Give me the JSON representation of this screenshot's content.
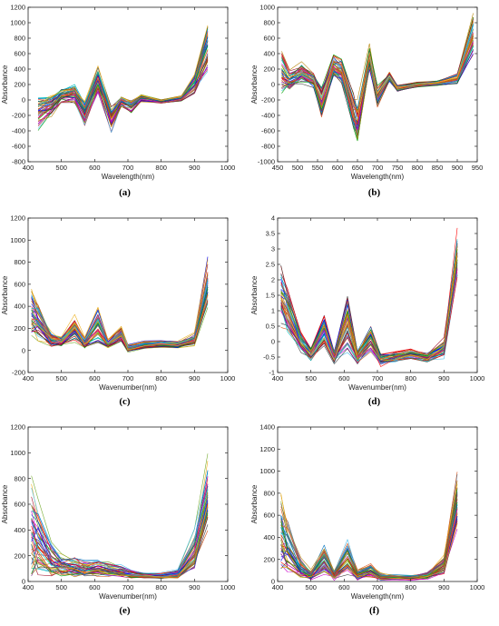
{
  "chart_data": [
    {
      "id": "a",
      "type": "line",
      "panel_label": "(a)",
      "xlabel": "Wavelength(nm)",
      "ylabel": "Absorbance",
      "xlim": [
        400,
        1000
      ],
      "ylim": [
        -800,
        1200
      ],
      "xticks": [
        400,
        500,
        600,
        700,
        800,
        900,
        1000
      ],
      "yticks": [
        -800,
        -600,
        -400,
        -200,
        0,
        200,
        400,
        600,
        800,
        1000,
        1200
      ],
      "x": [
        430,
        470,
        500,
        540,
        570,
        610,
        650,
        680,
        710,
        740,
        800,
        860,
        900,
        940
      ],
      "mean": [
        -150,
        -80,
        50,
        80,
        -180,
        250,
        -250,
        -30,
        -80,
        20,
        -20,
        20,
        200,
        650
      ],
      "spread": [
        200,
        120,
        80,
        100,
        130,
        150,
        150,
        60,
        70,
        40,
        20,
        30,
        100,
        300
      ],
      "n_series": 45,
      "grid": false
    },
    {
      "id": "b",
      "type": "line",
      "panel_label": "(b)",
      "xlabel": "Wavelength(nm)",
      "ylabel": "Absorbance",
      "xlim": [
        450,
        950
      ],
      "ylim": [
        -1000,
        1000
      ],
      "xticks": [
        450,
        500,
        550,
        600,
        650,
        700,
        750,
        800,
        850,
        900,
        950
      ],
      "yticks": [
        -1000,
        -800,
        -600,
        -400,
        -200,
        0,
        200,
        400,
        600,
        800,
        1000
      ],
      "x": [
        460,
        480,
        510,
        540,
        560,
        590,
        610,
        640,
        650,
        680,
        700,
        730,
        750,
        800,
        850,
        900,
        940
      ],
      "mean": [
        150,
        60,
        150,
        60,
        -200,
        250,
        200,
        -350,
        -500,
        350,
        -150,
        100,
        -50,
        0,
        20,
        80,
        650
      ],
      "spread": [
        250,
        120,
        120,
        80,
        200,
        120,
        150,
        200,
        250,
        150,
        120,
        60,
        40,
        30,
        30,
        60,
        250
      ],
      "n_series": 45,
      "grid": false
    },
    {
      "id": "c",
      "type": "line",
      "panel_label": "(c)",
      "xlabel": "Wavenumber(nm)",
      "ylabel": "Absorbance",
      "xlim": [
        400,
        1000
      ],
      "ylim": [
        -200,
        1200
      ],
      "xticks": [
        400,
        500,
        600,
        700,
        800,
        900,
        1000
      ],
      "yticks": [
        -200,
        0,
        200,
        400,
        600,
        800,
        1000,
        1200
      ],
      "x": [
        410,
        430,
        470,
        500,
        540,
        570,
        610,
        640,
        680,
        700,
        750,
        800,
        850,
        900,
        940
      ],
      "mean": [
        350,
        280,
        100,
        80,
        200,
        70,
        230,
        60,
        150,
        20,
        50,
        60,
        50,
        100,
        600
      ],
      "spread": [
        200,
        150,
        60,
        40,
        100,
        40,
        150,
        40,
        70,
        30,
        30,
        30,
        30,
        50,
        200
      ],
      "n_series": 45,
      "grid": false
    },
    {
      "id": "d",
      "type": "line",
      "panel_label": "(d)",
      "xlabel": "Wavenumber(nm)",
      "ylabel": "Absorbance",
      "xlim": [
        400,
        1000
      ],
      "ylim": [
        -1,
        4
      ],
      "xticks": [
        400,
        500,
        600,
        700,
        800,
        900,
        1000
      ],
      "yticks": [
        -1,
        -0.5,
        0,
        0.5,
        1,
        1.5,
        2,
        2.5,
        3,
        3.5,
        4
      ],
      "x": [
        410,
        430,
        470,
        500,
        540,
        570,
        610,
        640,
        680,
        710,
        750,
        800,
        850,
        900,
        940
      ],
      "mean": [
        1.5,
        1.0,
        0.0,
        -0.4,
        0.4,
        -0.5,
        0.6,
        -0.5,
        0.1,
        -0.6,
        -0.5,
        -0.4,
        -0.5,
        -0.2,
        2.8
      ],
      "spread": [
        0.9,
        0.6,
        0.3,
        0.2,
        0.5,
        0.2,
        0.8,
        0.2,
        0.4,
        0.2,
        0.15,
        0.15,
        0.15,
        0.3,
        0.8
      ],
      "n_series": 45,
      "grid": false
    },
    {
      "id": "e",
      "type": "line",
      "panel_label": "(e)",
      "xlabel": "Wavenumber(nm)",
      "ylabel": "Absorbance",
      "xlim": [
        400,
        1000
      ],
      "ylim": [
        0,
        1200
      ],
      "xticks": [
        400,
        500,
        600,
        700,
        800,
        900,
        1000
      ],
      "yticks": [
        0,
        200,
        400,
        600,
        800,
        1000,
        1200
      ],
      "x": [
        410,
        430,
        470,
        500,
        540,
        570,
        610,
        640,
        680,
        710,
        750,
        800,
        850,
        900,
        940
      ],
      "mean": [
        420,
        330,
        180,
        130,
        120,
        100,
        110,
        100,
        80,
        60,
        50,
        45,
        60,
        250,
        700
      ],
      "spread": [
        330,
        250,
        120,
        80,
        70,
        60,
        60,
        50,
        40,
        30,
        20,
        20,
        30,
        150,
        250
      ],
      "n_series": 45,
      "grid": false
    },
    {
      "id": "f",
      "type": "line",
      "panel_label": "(f)",
      "xlabel": "Wavelength(nm)",
      "ylabel": "Absorbance",
      "xlim": [
        400,
        1000
      ],
      "ylim": [
        0,
        1400
      ],
      "xticks": [
        400,
        500,
        600,
        700,
        800,
        900,
        1000
      ],
      "yticks": [
        0,
        200,
        400,
        600,
        800,
        1000,
        1200,
        1400
      ],
      "x": [
        410,
        430,
        470,
        500,
        540,
        570,
        610,
        640,
        680,
        710,
        750,
        800,
        850,
        900,
        940
      ],
      "mean": [
        450,
        330,
        120,
        60,
        200,
        60,
        220,
        60,
        100,
        40,
        40,
        35,
        50,
        150,
        750
      ],
      "spread": [
        300,
        220,
        80,
        40,
        120,
        40,
        150,
        40,
        60,
        30,
        20,
        20,
        30,
        80,
        250
      ],
      "n_series": 45,
      "grid": false
    }
  ],
  "series_colors": [
    "#0072BD",
    "#D95319",
    "#EDB120",
    "#7E2F8E",
    "#77AC30",
    "#4DBEEE",
    "#A2142F",
    "#0000FF",
    "#FF0000",
    "#00A000",
    "#CC00CC",
    "#00BFBF",
    "#404040",
    "#B8860B"
  ]
}
